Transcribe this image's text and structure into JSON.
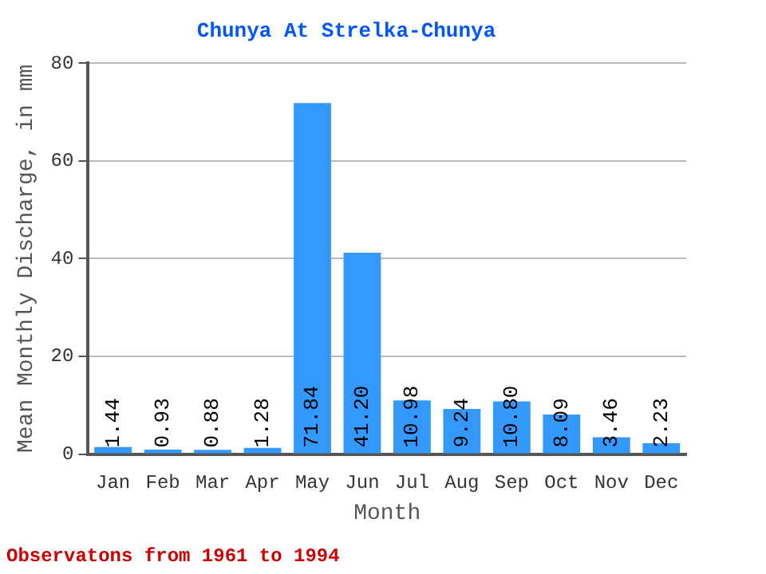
{
  "chart_data": {
    "type": "bar",
    "title": "Chunya At Strelka-Chunya",
    "xlabel": "Month",
    "ylabel": "Mean Monthly Discharge, in mm",
    "categories": [
      "Jan",
      "Feb",
      "Mar",
      "Apr",
      "May",
      "Jun",
      "Jul",
      "Aug",
      "Sep",
      "Oct",
      "Nov",
      "Dec"
    ],
    "values": [
      1.44,
      0.93,
      0.88,
      1.28,
      71.84,
      41.2,
      10.98,
      9.24,
      10.8,
      8.09,
      3.46,
      2.23
    ],
    "value_labels": [
      "1.44",
      "0.93",
      "0.88",
      "1.28",
      "71.84",
      "41.20",
      "10.98",
      "9.24",
      "10.80",
      "8.09",
      "3.46",
      "2.23"
    ],
    "color": "#3399ff",
    "ylim": [
      0,
      80
    ],
    "yticks": [
      0,
      20,
      40,
      60,
      80
    ],
    "grid": "y",
    "legend": false,
    "annotations": [
      "Observatons from 1961 to 1994"
    ]
  }
}
